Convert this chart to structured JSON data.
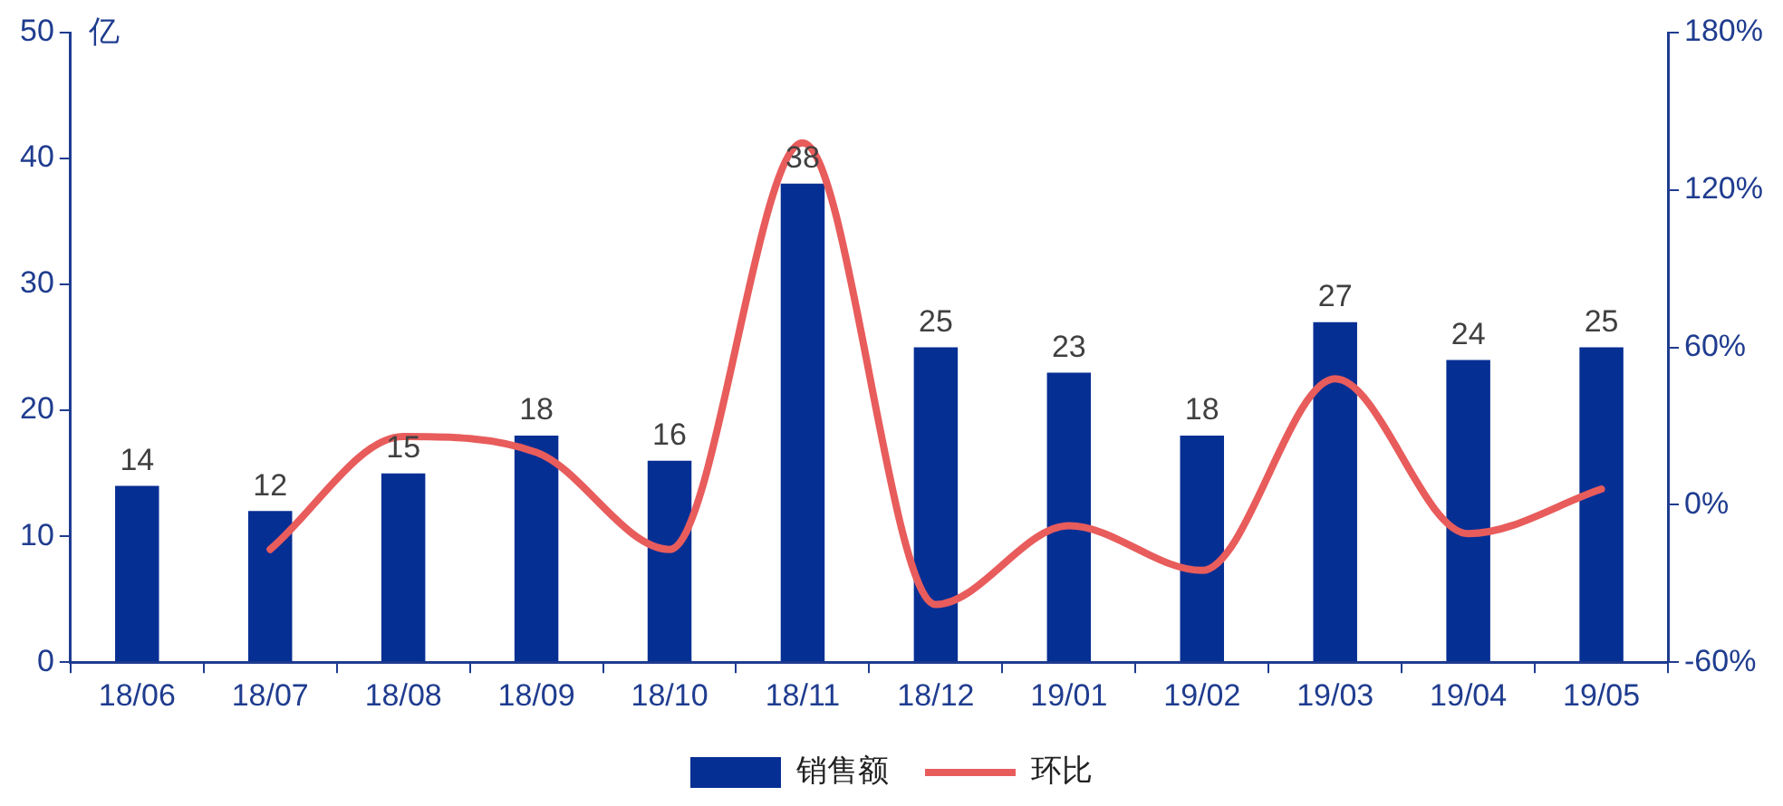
{
  "chart_data": {
    "type": "bar",
    "ylabel": "亿",
    "categories": [
      "18/06",
      "18/07",
      "18/08",
      "18/09",
      "18/10",
      "18/11",
      "18/12",
      "19/01",
      "19/02",
      "19/03",
      "19/04",
      "19/05"
    ],
    "series": [
      {
        "name": "销售额",
        "color": "#062f94",
        "values": [
          14,
          12,
          15,
          18,
          16,
          38,
          25,
          23,
          18,
          27,
          24,
          25
        ],
        "value_labels": [
          "14",
          "12",
          "15",
          "18",
          "16",
          "38",
          "25",
          "23",
          "18",
          "27",
          "24",
          "25"
        ]
      },
      {
        "name": "环比",
        "type": "line",
        "axis": "y2",
        "color": "#e85c5c",
        "values": [
          null,
          -17,
          26,
          20,
          -17,
          138,
          -38,
          -8,
          -25,
          48,
          -11,
          6
        ]
      }
    ],
    "ylim": [
      0,
      50
    ],
    "yticks": [
      0,
      10,
      20,
      30,
      40,
      50
    ],
    "y2lim": [
      -60,
      180
    ],
    "y2ticks": [
      {
        "value": -60,
        "label": "-60%"
      },
      {
        "value": 0,
        "label": "0%"
      },
      {
        "value": 60,
        "label": "60%"
      },
      {
        "value": 120,
        "label": "120%"
      },
      {
        "value": 180,
        "label": "180%"
      }
    ],
    "grid": false,
    "legend": "bottom",
    "marker": "none",
    "line_style": "solid"
  }
}
